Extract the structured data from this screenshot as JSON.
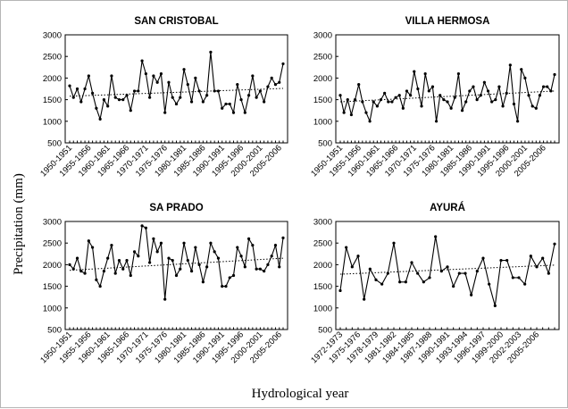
{
  "figure": {
    "ylabel": "Precipitation (mm)",
    "xlabel": "Hydrological year"
  },
  "chart_data": [
    {
      "type": "line",
      "title": "SAN CRISTOBAL",
      "ylim": [
        500,
        3000
      ],
      "yticks": [
        500,
        1000,
        1500,
        2000,
        2500,
        3000
      ],
      "x_start": 1950,
      "xticks": [
        "1950-1951",
        "1955-1956",
        "1960-1961",
        "1965-1966",
        "1970-1971",
        "1975-1976",
        "1980-1981",
        "1985-1986",
        "1990-1991",
        "1995-1996",
        "2000-2001",
        "2005-2006"
      ],
      "x_tick_index": [
        0,
        5,
        10,
        15,
        20,
        25,
        30,
        35,
        40,
        45,
        50,
        55
      ],
      "series": [
        {
          "values": [
            1820,
            1550,
            1750,
            1450,
            1750,
            2050,
            1650,
            1300,
            1050,
            1500,
            1350,
            2050,
            1550,
            1500,
            1500,
            1600,
            1250,
            1700,
            1700,
            2400,
            2100,
            1550,
            2050,
            1900,
            2100,
            1200,
            1900,
            1550,
            1400,
            1550,
            2200,
            1850,
            1450,
            2000,
            1700,
            1450,
            1600,
            2600,
            1700,
            1700,
            1300,
            1400,
            1400,
            1200,
            1850,
            1500,
            1200,
            1600,
            2050,
            1550,
            1700,
            1450,
            1800,
            2000,
            1850,
            1900,
            2330
          ]
        }
      ],
      "trend": [
        1580,
        1760
      ],
      "grid": false
    },
    {
      "type": "line",
      "title": "VILLA HERMOSA",
      "ylim": [
        500,
        3000
      ],
      "yticks": [
        500,
        1000,
        1500,
        2000,
        2500,
        3000
      ],
      "x_start": 1950,
      "xticks": [
        "1950-1951",
        "1955-1956",
        "1960-1961",
        "1965-1966",
        "1970-1971",
        "1975-1976",
        "1980-1981",
        "1985-1986",
        "1990-1991",
        "1995-1996",
        "2000-2001",
        "2005-2006"
      ],
      "x_tick_index": [
        0,
        5,
        10,
        15,
        20,
        25,
        30,
        35,
        40,
        45,
        50,
        55
      ],
      "series": [
        {
          "values": [
            1600,
            1200,
            1500,
            1150,
            1500,
            1850,
            1450,
            1200,
            1000,
            1450,
            1350,
            1500,
            1650,
            1450,
            1450,
            1550,
            1600,
            1300,
            1700,
            1600,
            2150,
            1750,
            1350,
            2100,
            1700,
            1800,
            1000,
            1600,
            1500,
            1450,
            1300,
            1550,
            2100,
            1250,
            1450,
            1700,
            1800,
            1500,
            1600,
            1900,
            1700,
            1450,
            1500,
            1800,
            1350,
            1650,
            2300,
            1400,
            1000,
            2200,
            2000,
            1600,
            1350,
            1300,
            1600,
            1800,
            1800,
            1700,
            2080
          ]
        }
      ],
      "trend": [
        1450,
        1700
      ],
      "grid": false
    },
    {
      "type": "line",
      "title": "SA PRADO",
      "ylim": [
        500,
        3000
      ],
      "yticks": [
        500,
        1000,
        1500,
        2000,
        2500,
        3000
      ],
      "x_start": 1950,
      "xticks": [
        "1950-1951",
        "1955-1956",
        "1960-1961",
        "1965-1966",
        "1970-1971",
        "1975-1976",
        "1980-1981",
        "1985-1986",
        "1990-1991",
        "1995-1996",
        "2000-2001",
        "2005-2006"
      ],
      "x_tick_index": [
        0,
        5,
        10,
        15,
        20,
        25,
        30,
        35,
        40,
        45,
        50,
        55
      ],
      "series": [
        {
          "values": [
            2000,
            1900,
            2150,
            1850,
            1800,
            2550,
            2400,
            1650,
            1500,
            1850,
            2150,
            2450,
            1800,
            2100,
            1900,
            2100,
            1750,
            2300,
            2200,
            2900,
            2850,
            2050,
            2600,
            2300,
            2500,
            1200,
            2150,
            2100,
            1750,
            1900,
            2500,
            2100,
            1850,
            2400,
            2000,
            1600,
            1950,
            2500,
            2300,
            2150,
            1500,
            1500,
            1700,
            1750,
            2400,
            2200,
            1950,
            2600,
            2450,
            1900,
            1900,
            1850,
            2000,
            2200,
            2450,
            1950,
            2620
          ]
        }
      ],
      "trend": [
        1870,
        2150
      ],
      "grid": false
    },
    {
      "type": "line",
      "title": "AYURÁ",
      "ylim": [
        500,
        3000
      ],
      "yticks": [
        500,
        1000,
        1500,
        2000,
        2500,
        3000
      ],
      "x_start": 1972,
      "xticks": [
        "1972-1973",
        "1975-1976",
        "1978-1979",
        "1981-1982",
        "1984-1985",
        "1987-1988",
        "1990-1991",
        "1993-1994",
        "1996-1997",
        "1999-2000",
        "2002-2003",
        "2005-2006"
      ],
      "x_tick_index": [
        0,
        3,
        6,
        9,
        12,
        15,
        18,
        21,
        24,
        27,
        30,
        33
      ],
      "series": [
        {
          "values": [
            1400,
            2400,
            1950,
            2200,
            1200,
            1900,
            1650,
            1550,
            1800,
            2500,
            1600,
            1600,
            2050,
            1800,
            1600,
            1700,
            2650,
            1850,
            1950,
            1500,
            1800,
            1800,
            1300,
            1850,
            2150,
            1550,
            1050,
            2100,
            2100,
            1700,
            1700,
            1550,
            2200,
            1950,
            2150,
            1800,
            2480
          ]
        }
      ],
      "trend": [
        1780,
        1990
      ],
      "grid": false
    }
  ]
}
